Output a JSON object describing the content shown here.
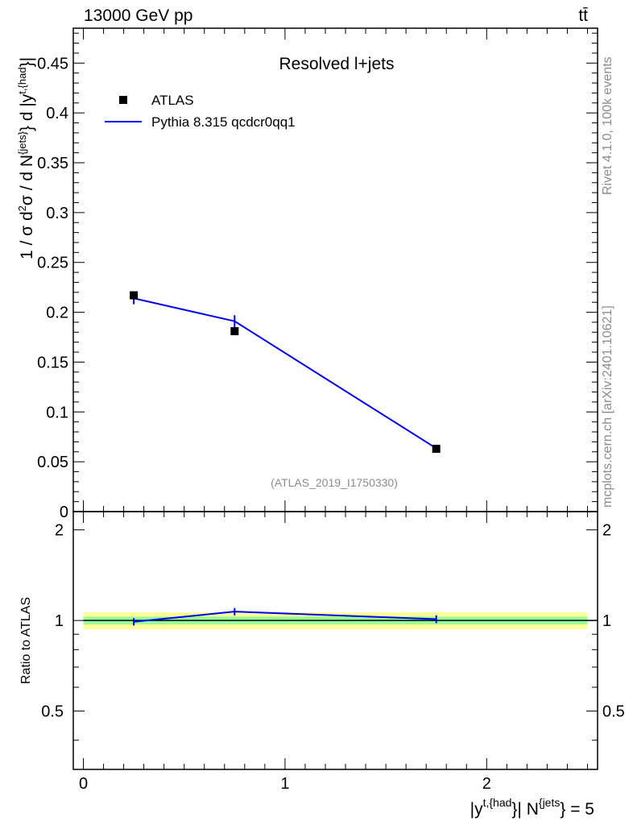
{
  "header": {
    "left": "13000 GeV pp",
    "right": "tt̄"
  },
  "side": {
    "rivet": "Rivet 4.1.0,  100k events",
    "source": "mcplots.cern.ch [arXiv:2401.10621]"
  },
  "colors": {
    "data": "#000000",
    "mc": "#0000ee",
    "band_inner": "#99ff99",
    "band_outer": "#ffff99"
  },
  "chart_data": [
    {
      "type": "scatter",
      "panel": "main",
      "title": "Resolved l+jets",
      "watermark": "(ATLAS_2019_I1750330)",
      "ylabel_parts": {
        "pre": "1 / σ d",
        "sup2": "2",
        "mid": "σ / d N",
        "sup_jets": "{jets}",
        "post": "} d |y",
        "sup_thad": "t,{had",
        "end": "}|"
      },
      "ylim": [
        0,
        0.485
      ],
      "xlim": [
        -0.05,
        2.55
      ],
      "yticks": [
        0,
        0.05,
        0.1,
        0.15,
        0.2,
        0.25,
        0.3,
        0.35,
        0.4,
        0.45
      ],
      "ytick_labels": [
        "0",
        "0.05",
        "0.1",
        "0.15",
        "0.2",
        "0.25",
        "0.3",
        "0.35",
        "0.4",
        "0.45"
      ],
      "legend": {
        "position": "top-left",
        "entries": [
          "ATLAS",
          "Pythia 8.315 qcdcr0qq1"
        ]
      },
      "series": [
        {
          "name": "ATLAS",
          "style": "markers",
          "x": [
            0.25,
            0.75,
            1.75
          ],
          "y": [
            0.217,
            0.181,
            0.063
          ]
        },
        {
          "name": "Pythia 8.315 qcdcr0qq1",
          "style": "line",
          "x": [
            0.25,
            0.75,
            1.75
          ],
          "y": [
            0.214,
            0.191,
            0.0635
          ],
          "yerr": [
            0.006,
            0.006,
            0.002
          ]
        }
      ]
    },
    {
      "type": "line",
      "panel": "ratio",
      "ylabel": "Ratio to ATLAS",
      "ylim": [
        0.32,
        2.3
      ],
      "xlim": [
        -0.05,
        2.55
      ],
      "yticks": [
        0.5,
        1,
        2
      ],
      "ytick_labels": [
        "0.5",
        "1",
        "2"
      ],
      "xticks": [
        0,
        1,
        2
      ],
      "xtick_labels": [
        "0",
        "1",
        "2"
      ],
      "xlabel_parts": {
        "pre": "|y",
        "sup_thad": "t,{had",
        "mid": "}| N",
        "sup_jets": "{jets",
        "post": "} = 5"
      },
      "bands": {
        "inner_half_width": 0.03,
        "outer_half_width": 0.065
      },
      "series": [
        {
          "name": "Pythia 8.315 qcdcr0qq1",
          "x": [
            0.25,
            0.75,
            1.75
          ],
          "y": [
            0.99,
            1.07,
            1.01
          ],
          "yerr": [
            0.028,
            0.03,
            0.03
          ]
        }
      ]
    }
  ]
}
